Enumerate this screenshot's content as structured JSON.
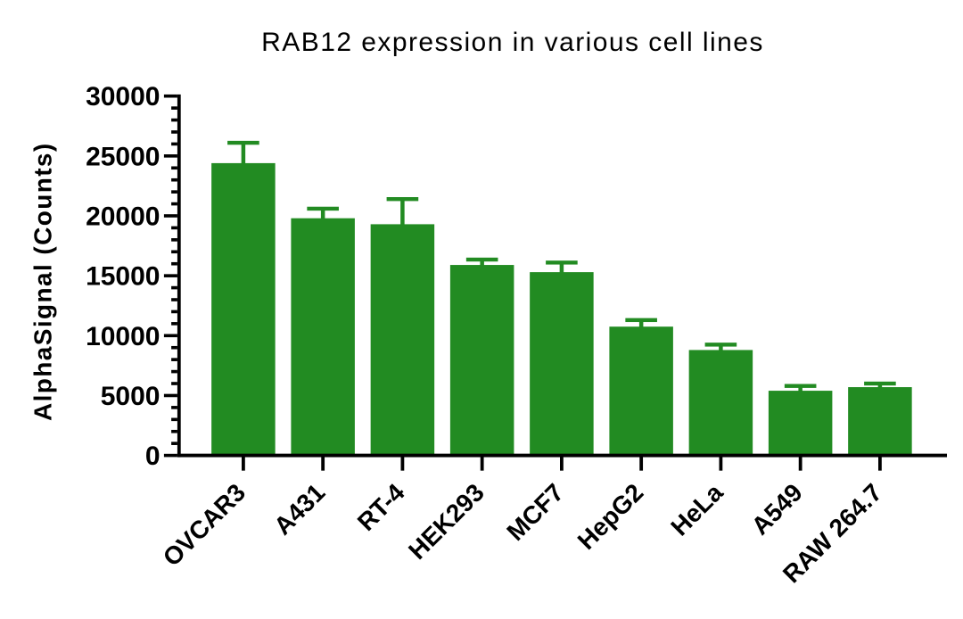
{
  "chart_data": {
    "type": "bar",
    "title": "RAB12 expression in various cell lines",
    "ylabel": "AlphaSignal (Counts)",
    "xlabel": "",
    "categories": [
      "OVCAR3",
      "A431",
      "RT-4",
      "HEK293",
      "MCF7",
      "HepG2",
      "HeLa",
      "A549",
      "RAW 264.7"
    ],
    "values": [
      24400,
      19800,
      19300,
      15900,
      15300,
      10750,
      8800,
      5400,
      5700
    ],
    "errors": [
      1700,
      800,
      2100,
      450,
      800,
      550,
      450,
      400,
      300
    ],
    "error_type": "sd, upper only",
    "ylim": [
      0,
      30000
    ],
    "ytick_interval": 5000,
    "yminor_interval": 1000,
    "yticks": [
      0,
      5000,
      10000,
      15000,
      20000,
      25000,
      30000
    ],
    "grid": "off",
    "legend": "none",
    "bar_color": "#228B22",
    "error_color": "#228B22",
    "axis_color": "#000000",
    "text_color": "#000000",
    "background_color": "#ffffff",
    "x_label_rotation_deg": 45
  }
}
